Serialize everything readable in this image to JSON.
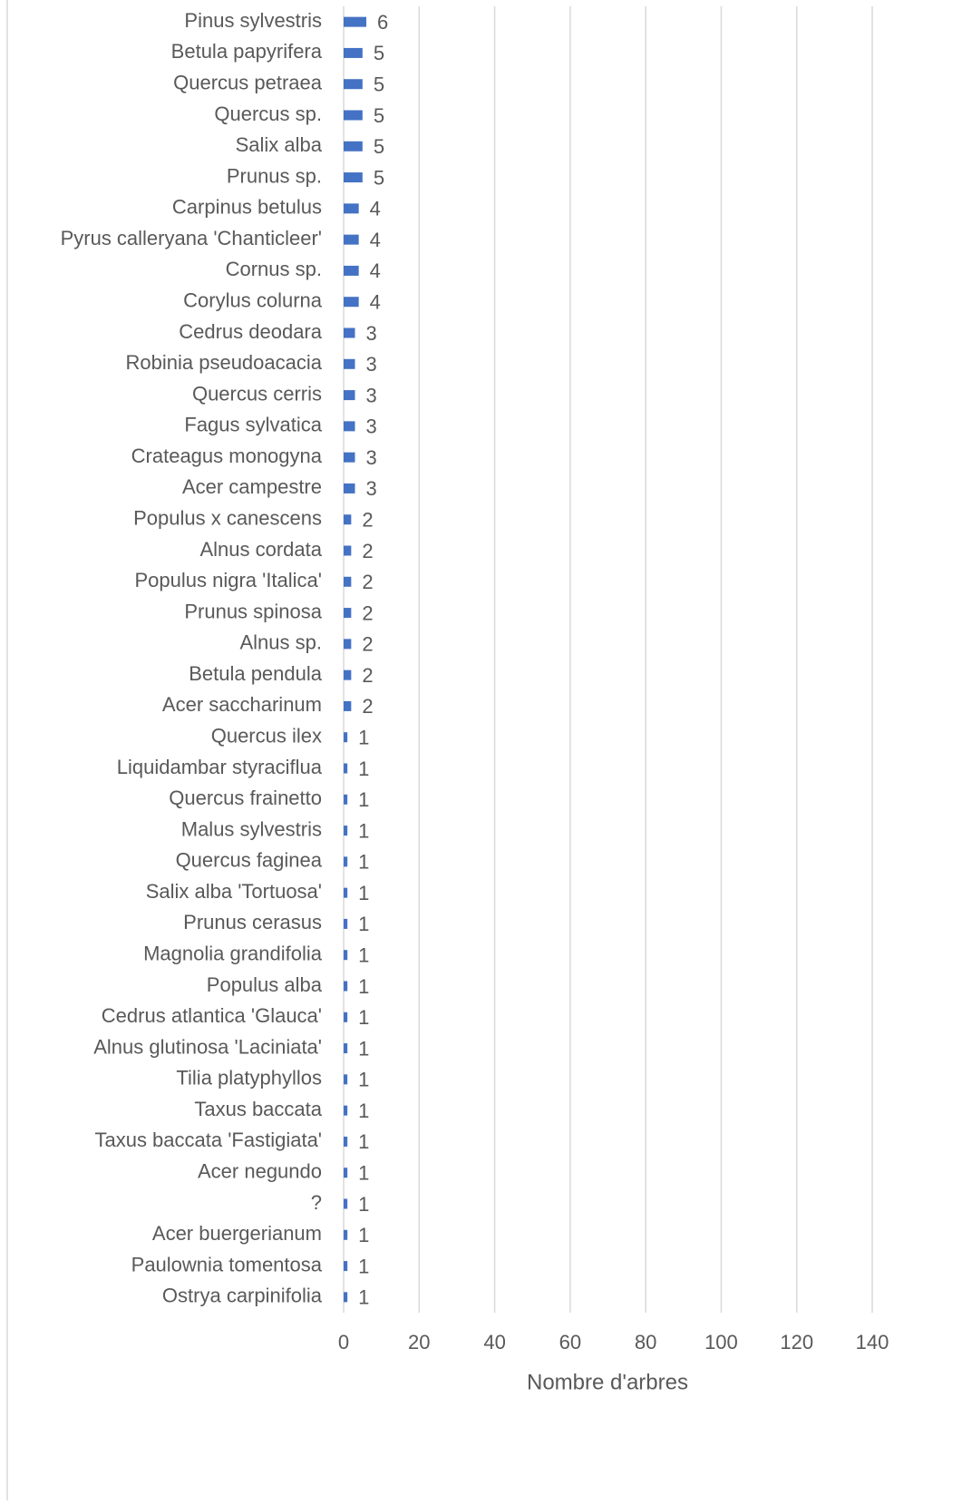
{
  "chart_data": {
    "type": "barh",
    "x_label": "Nombre d'arbres",
    "categories": [
      "Pinus sylvestris",
      "Betula papyrifera",
      "Quercus petraea",
      "Quercus sp.",
      "Salix alba",
      "Prunus sp.",
      "Carpinus betulus",
      "Pyrus calleryana 'Chanticleer'",
      "Cornus sp.",
      "Corylus colurna",
      "Cedrus deodara",
      "Robinia pseudoacacia",
      "Quercus cerris",
      "Fagus sylvatica",
      "Crateagus monogyna",
      "Acer campestre",
      "Populus x canescens",
      "Alnus cordata",
      "Populus nigra 'Italica'",
      "Prunus spinosa",
      "Alnus sp.",
      "Betula pendula",
      "Acer saccharinum",
      "Quercus ilex",
      "Liquidambar styraciflua",
      "Quercus frainetto",
      "Malus sylvestris",
      "Quercus faginea",
      "Salix alba 'Tortuosa'",
      "Prunus cerasus",
      "Magnolia grandifolia",
      "Populus alba",
      "Cedrus atlantica 'Glauca'",
      "Alnus glutinosa 'Laciniata'",
      "Tilia platyphyllos",
      "Taxus baccata",
      "Taxus baccata 'Fastigiata'",
      "Acer negundo",
      "?",
      "Acer buergerianum",
      "Paulownia tomentosa",
      "Ostrya carpinifolia"
    ],
    "values": [
      6,
      5,
      5,
      5,
      5,
      5,
      4,
      4,
      4,
      4,
      3,
      3,
      3,
      3,
      3,
      3,
      2,
      2,
      2,
      2,
      2,
      2,
      2,
      1,
      1,
      1,
      1,
      1,
      1,
      1,
      1,
      1,
      1,
      1,
      1,
      1,
      1,
      1,
      1,
      1,
      1,
      1
    ],
    "color": "#4472c4",
    "xlim": [
      0,
      140
    ],
    "xticks": [
      0,
      20,
      40,
      60,
      80,
      100,
      120,
      140
    ],
    "grid": true
  }
}
